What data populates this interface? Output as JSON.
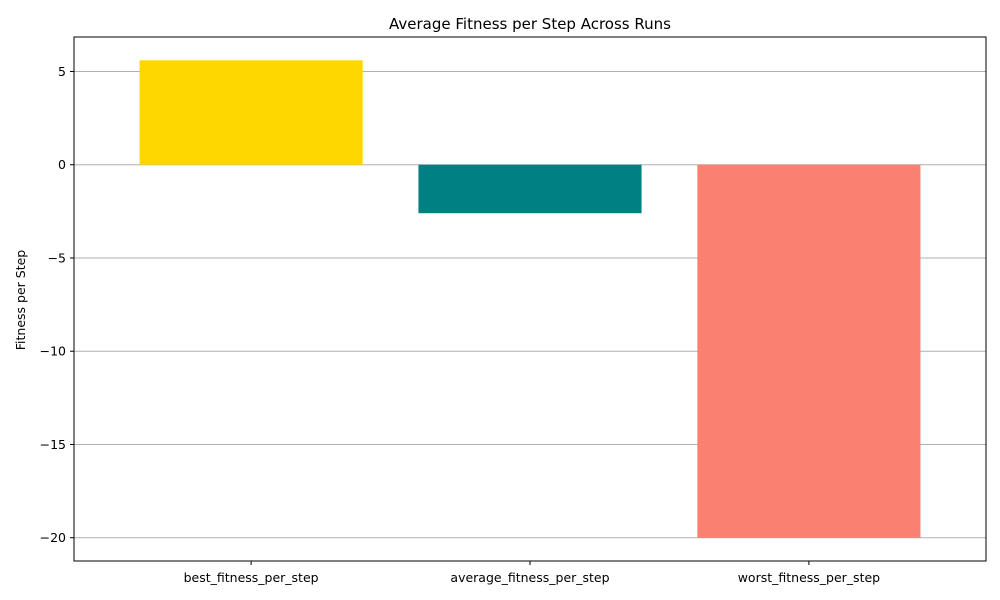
{
  "chart_data": {
    "type": "bar",
    "title": "Average Fitness per Step Across Runs",
    "xlabel": "",
    "ylabel": "Fitness per Step",
    "categories": [
      "best_fitness_per_step",
      "average_fitness_per_step",
      "worst_fitness_per_step"
    ],
    "values": [
      5.6,
      -2.6,
      -20.0
    ],
    "colors": [
      "#FFD700",
      "#008080",
      "#FA8072"
    ],
    "ylim": [
      -21.25,
      6.85
    ],
    "yticks": [
      5,
      0,
      -5,
      -10,
      -15,
      -20
    ],
    "ytick_labels": [
      "5",
      "0",
      "−5",
      "−10",
      "−15",
      "−20"
    ],
    "grid": "y",
    "legend": "none"
  }
}
